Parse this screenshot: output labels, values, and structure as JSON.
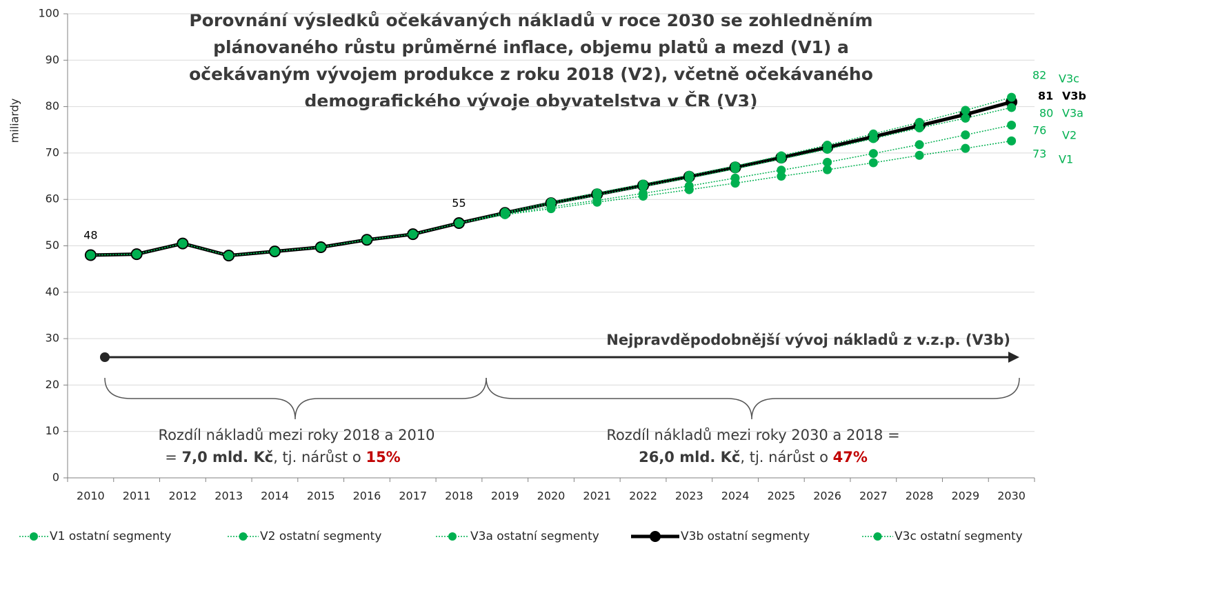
{
  "chart_data": {
    "type": "line",
    "title": [
      "Porovnání výsledků očekávaných nákladů v roce 2030 se zohledněním",
      "plánovaného růstu průměrné inflace, objemu platů a mezd (V1) a",
      "očekávaným vývojem produkce z roku 2018 (V2), včetně očekávaného",
      "demografického vývoje obyvatelstva v ČR (V3)"
    ],
    "ylabel": "miliardy",
    "categories": [
      "2010",
      "2011",
      "2012",
      "2013",
      "2014",
      "2015",
      "2016",
      "2017",
      "2018",
      "2019",
      "2020",
      "2021",
      "2022",
      "2023",
      "2024",
      "2025",
      "2026",
      "2027",
      "2028",
      "2029",
      "2030"
    ],
    "ylim": [
      0,
      100
    ],
    "yticks": [
      0,
      10,
      20,
      30,
      40,
      50,
      60,
      70,
      80,
      90,
      100
    ],
    "grid": true,
    "series": [
      {
        "name": "V1 ostatní segmenty",
        "tag": "V1",
        "color": "#00b050",
        "style": "dotted",
        "values": [
          48,
          48.2,
          50.5,
          47.9,
          48.8,
          49.7,
          51.3,
          52.5,
          54.9,
          56.7,
          58.0,
          59.4,
          60.7,
          62.1,
          63.5,
          65.0,
          66.4,
          67.9,
          69.5,
          71.0,
          72.6
        ],
        "value_labels": [
          null,
          null,
          null,
          null,
          null,
          null,
          null,
          null,
          null,
          null,
          null,
          null,
          null,
          null,
          null,
          null,
          null,
          null,
          null,
          null,
          "73"
        ]
      },
      {
        "name": "V2 ostatní segmenty",
        "tag": "V2",
        "color": "#00b050",
        "style": "dotted",
        "values": [
          48,
          48.2,
          50.5,
          47.9,
          48.8,
          49.7,
          51.3,
          52.5,
          54.9,
          56.8,
          58.4,
          59.8,
          61.3,
          62.9,
          64.6,
          66.3,
          68.0,
          69.9,
          71.8,
          73.9,
          76.0
        ],
        "value_labels": [
          null,
          null,
          null,
          null,
          null,
          null,
          null,
          null,
          null,
          null,
          null,
          null,
          null,
          null,
          null,
          null,
          null,
          null,
          null,
          null,
          "76"
        ]
      },
      {
        "name": "V3a ostatní segmenty",
        "tag": "V3a",
        "color": "#00b050",
        "style": "dotted",
        "values": [
          48,
          48.2,
          50.5,
          47.9,
          48.8,
          49.7,
          51.3,
          52.5,
          54.9,
          57.0,
          59.0,
          60.9,
          62.8,
          64.6,
          66.6,
          68.7,
          70.8,
          73.1,
          75.4,
          77.5,
          79.8
        ],
        "value_labels": [
          null,
          null,
          null,
          null,
          null,
          null,
          null,
          null,
          null,
          null,
          null,
          null,
          null,
          null,
          null,
          null,
          null,
          null,
          null,
          null,
          "80"
        ]
      },
      {
        "name": "V3b ostatní segmenty",
        "tag": "V3b",
        "color": "#000000",
        "style": "solid",
        "values": [
          48,
          48.2,
          50.5,
          47.9,
          48.8,
          49.7,
          51.3,
          52.5,
          54.9,
          57.1,
          59.2,
          61.1,
          63.0,
          64.9,
          66.9,
          69.0,
          71.2,
          73.5,
          75.9,
          78.3,
          81.0
        ],
        "value_labels": [
          "48",
          null,
          null,
          null,
          null,
          null,
          null,
          null,
          "55",
          null,
          null,
          null,
          null,
          null,
          null,
          null,
          null,
          null,
          null,
          null,
          "81"
        ]
      },
      {
        "name": "V3c ostatní segmenty",
        "tag": "V3c",
        "color": "#00b050",
        "style": "dotted",
        "values": [
          48,
          48.2,
          50.5,
          47.9,
          48.8,
          49.7,
          51.3,
          52.5,
          54.9,
          57.2,
          59.4,
          61.4,
          63.3,
          65.2,
          67.2,
          69.4,
          71.7,
          74.1,
          76.6,
          79.2,
          82.0
        ],
        "value_labels": [
          null,
          null,
          null,
          null,
          null,
          null,
          null,
          null,
          null,
          null,
          null,
          null,
          null,
          null,
          null,
          null,
          null,
          null,
          null,
          null,
          "82"
        ]
      }
    ],
    "annotations": {
      "arrow": "Nejpravděpodobnější vývoj nákladů z v.z.p. (V3b)",
      "left": {
        "line1": "Rozdíl nákladů mezi roky 2018 a 2010",
        "line2": [
          "= ",
          "7,0 mld. Kč",
          ", tj. nárůst o ",
          "15%"
        ]
      },
      "right": {
        "line1": "Rozdíl nákladů mezi roky 2030 a 2018 =",
        "line2": [
          "26,0 mld. Kč",
          ", tj. nárůst o ",
          "47%"
        ]
      }
    }
  }
}
